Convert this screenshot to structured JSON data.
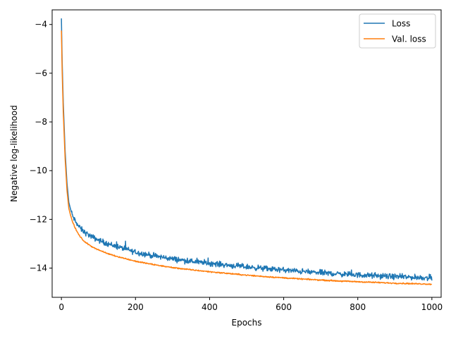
{
  "chart_data": {
    "type": "line",
    "xlabel": "Epochs",
    "ylabel": "Negative log-likelihood",
    "xlim": [
      -25,
      1025
    ],
    "ylim": [
      -15.2,
      -3.4
    ],
    "xticks": [
      0,
      200,
      400,
      600,
      800,
      1000
    ],
    "yticks": [
      -14,
      -12,
      -10,
      -8,
      -6,
      -4
    ],
    "xtick_labels": [
      "0",
      "200",
      "400",
      "600",
      "800",
      "1000"
    ],
    "ytick_labels": [
      "−14",
      "−12",
      "−10",
      "−8",
      "−6",
      "−4"
    ],
    "grid": false,
    "legend_position": "top-right",
    "series": [
      {
        "name": "Loss",
        "color": "#1f77b4",
        "x": [
          0,
          2,
          5,
          10,
          15,
          20,
          25,
          30,
          40,
          50,
          60,
          70,
          80,
          100,
          120,
          150,
          180,
          200,
          250,
          300,
          350,
          400,
          450,
          500,
          550,
          600,
          650,
          700,
          750,
          800,
          850,
          900,
          950,
          1000
        ],
        "y": [
          -3.75,
          -5.5,
          -7.2,
          -9.2,
          -10.5,
          -11.3,
          -11.6,
          -11.85,
          -12.15,
          -12.35,
          -12.5,
          -12.6,
          -12.7,
          -12.85,
          -12.97,
          -13.12,
          -13.25,
          -13.35,
          -13.5,
          -13.62,
          -13.72,
          -13.8,
          -13.88,
          -13.95,
          -14.02,
          -14.08,
          -14.14,
          -14.19,
          -14.24,
          -14.28,
          -14.32,
          -14.35,
          -14.38,
          -14.4
        ]
      },
      {
        "name": "Val. loss",
        "color": "#ff7f0e",
        "x": [
          0,
          2,
          5,
          10,
          15,
          20,
          25,
          30,
          40,
          50,
          60,
          70,
          80,
          100,
          120,
          150,
          180,
          200,
          250,
          300,
          350,
          400,
          450,
          500,
          550,
          600,
          650,
          700,
          750,
          800,
          850,
          900,
          950,
          1000
        ],
        "y": [
          -4.25,
          -5.9,
          -7.6,
          -9.5,
          -10.8,
          -11.55,
          -11.85,
          -12.1,
          -12.45,
          -12.7,
          -12.88,
          -13.0,
          -13.1,
          -13.25,
          -13.38,
          -13.52,
          -13.64,
          -13.72,
          -13.86,
          -13.98,
          -14.07,
          -14.15,
          -14.22,
          -14.29,
          -14.35,
          -14.4,
          -14.45,
          -14.49,
          -14.53,
          -14.56,
          -14.59,
          -14.62,
          -14.64,
          -14.66
        ]
      }
    ]
  }
}
